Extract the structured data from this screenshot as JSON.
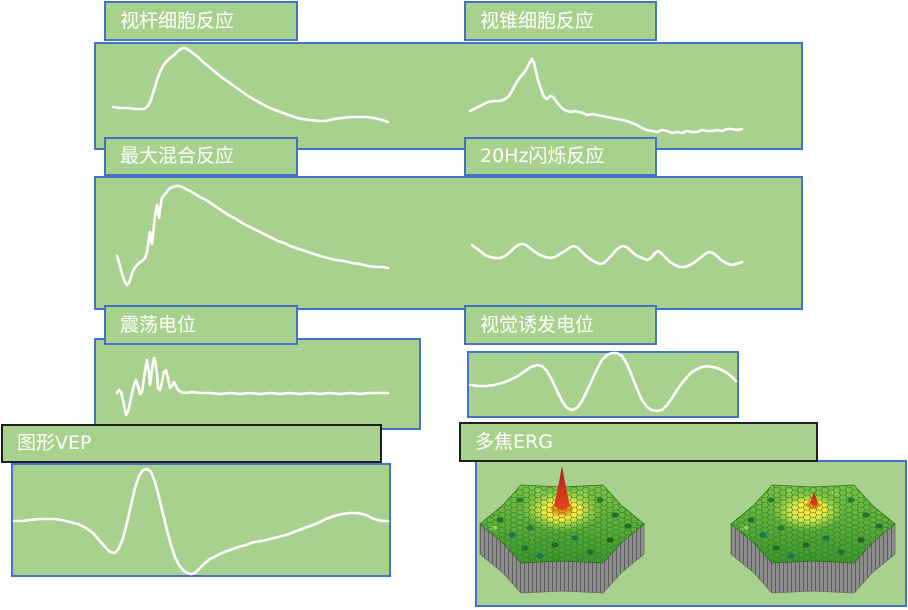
{
  "labels": {
    "rod_response": "视杆细胞反应",
    "cone_response": "视锥细胞反应",
    "max_combined_response": "最大混合反应",
    "flicker_response": "20Hz闪烁反应",
    "oscillatory_potentials": "震荡电位",
    "visual_evoked_potential": "视觉诱发电位",
    "pattern_vep": "图形VEP",
    "multifocal_erg": "多焦ERG"
  },
  "colors": {
    "panel_fill": "#A9D18E",
    "panel_border": "#4472C4",
    "dark_label_border": "#1F1F1F",
    "waveform": "#FFFFFF",
    "label_text": "#FFFFFF"
  }
}
